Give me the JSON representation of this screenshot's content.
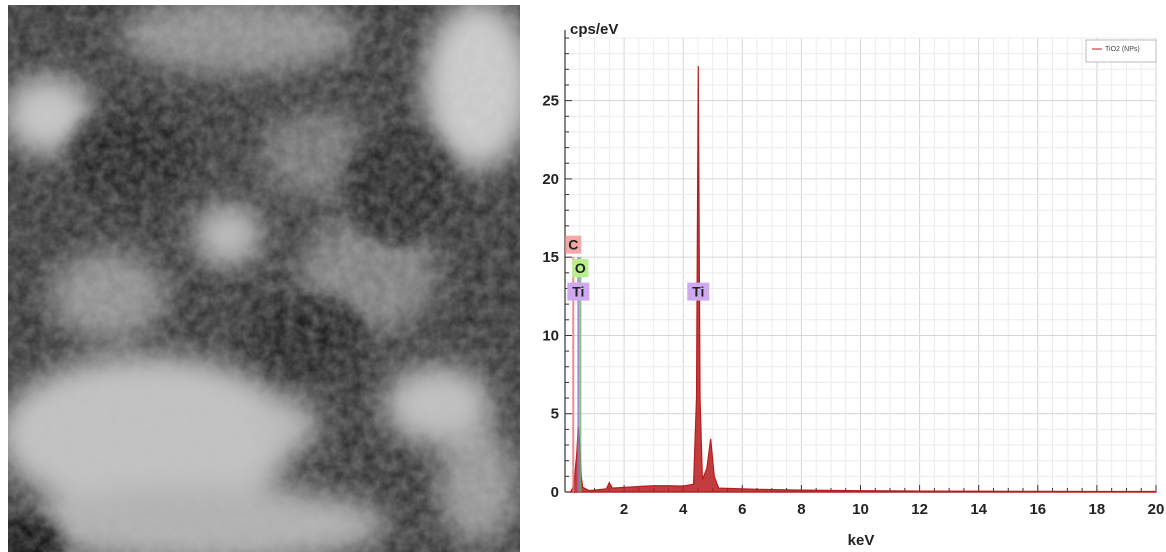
{
  "sem_image": {
    "description_icon": "sem-micrograph-image"
  },
  "chart_data": {
    "type": "line",
    "ylabel": "cps/eV",
    "xlabel": "keV",
    "xlim": [
      0,
      20
    ],
    "ylim": [
      0,
      29
    ],
    "x_ticks": [
      "2",
      "4",
      "6",
      "8",
      "10",
      "12",
      "14",
      "16",
      "18",
      "20"
    ],
    "y_ticks": [
      "0",
      "5",
      "10",
      "15",
      "20",
      "25"
    ],
    "grid": true,
    "legend_position": "top-right",
    "series": [
      {
        "name": "TiO2 (NPs)",
        "color": "#b71c1c",
        "points": [
          [
            0.2,
            0.05
          ],
          [
            0.3,
            0.4
          ],
          [
            0.4,
            2.5
          ],
          [
            0.45,
            4.2
          ],
          [
            0.5,
            3.0
          ],
          [
            0.55,
            1.0
          ],
          [
            0.6,
            0.3
          ],
          [
            0.8,
            0.1
          ],
          [
            1.0,
            0.12
          ],
          [
            1.4,
            0.2
          ],
          [
            1.5,
            0.6
          ],
          [
            1.6,
            0.25
          ],
          [
            2.0,
            0.3
          ],
          [
            2.5,
            0.35
          ],
          [
            3.0,
            0.4
          ],
          [
            3.5,
            0.4
          ],
          [
            4.0,
            0.38
          ],
          [
            4.35,
            0.5
          ],
          [
            4.45,
            6.0
          ],
          [
            4.51,
            27.2
          ],
          [
            4.57,
            6.0
          ],
          [
            4.65,
            0.8
          ],
          [
            4.8,
            1.5
          ],
          [
            4.93,
            3.4
          ],
          [
            5.05,
            1.0
          ],
          [
            5.2,
            0.25
          ],
          [
            6.0,
            0.2
          ],
          [
            7.0,
            0.15
          ],
          [
            8.0,
            0.12
          ],
          [
            10.0,
            0.08
          ],
          [
            12.0,
            0.06
          ],
          [
            14.0,
            0.05
          ],
          [
            16.0,
            0.04
          ],
          [
            18.0,
            0.03
          ],
          [
            20.0,
            0.03
          ]
        ]
      }
    ],
    "annotations": [
      {
        "label": "C",
        "x": 0.28,
        "y": 15.8,
        "color": "#f4a7a7"
      },
      {
        "label": "O",
        "x": 0.52,
        "y": 14.3,
        "color": "#b5f08a"
      },
      {
        "label": "Ti",
        "x": 0.45,
        "y": 12.8,
        "color": "#cfa9f0"
      },
      {
        "label": "Ti",
        "x": 4.51,
        "y": 12.8,
        "color": "#cfa9f0"
      }
    ],
    "line_markers": [
      {
        "x": 0.28,
        "color": "#e57373"
      },
      {
        "x": 0.52,
        "color": "#66bb6a"
      },
      {
        "x": 0.45,
        "color": "#9575cd"
      }
    ]
  }
}
